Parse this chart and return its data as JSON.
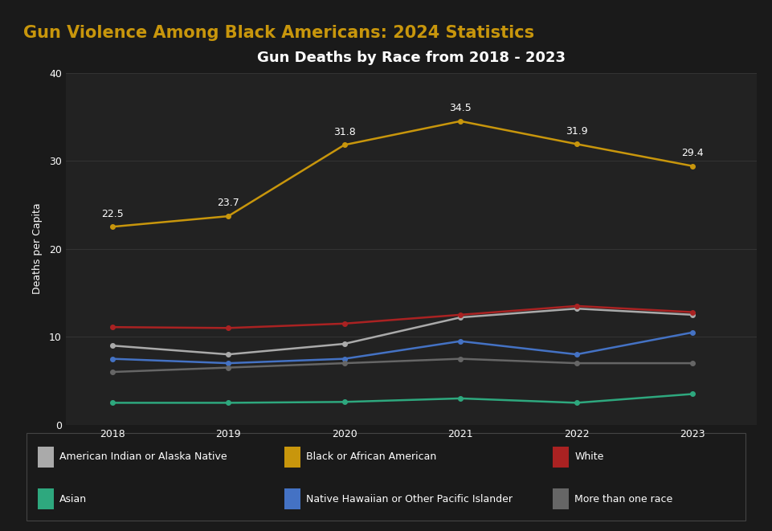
{
  "title": "Gun Deaths by Race from 2018 - 2023",
  "header_title": "Gun Violence Among Black Americans: 2024 Statistics",
  "ylabel": "Deaths per Capita",
  "years": [
    2018,
    2019,
    2020,
    2021,
    2022,
    2023
  ],
  "series": [
    {
      "label": "American Indian or Alaska Native",
      "color": "#aaaaaa",
      "values": [
        9.0,
        8.0,
        9.2,
        12.2,
        13.2,
        12.5
      ],
      "show_labels": false
    },
    {
      "label": "Black or African American",
      "color": "#c8960c",
      "values": [
        22.5,
        23.7,
        31.8,
        34.5,
        31.9,
        29.4
      ],
      "show_labels": true
    },
    {
      "label": "White",
      "color": "#aa2222",
      "values": [
        11.1,
        11.0,
        11.5,
        12.5,
        13.5,
        12.8
      ],
      "show_labels": false
    },
    {
      "label": "Asian",
      "color": "#2ea87e",
      "values": [
        2.5,
        2.5,
        2.6,
        3.0,
        2.5,
        3.5
      ],
      "show_labels": false
    },
    {
      "label": "Native Hawaiian or Other Pacific Islander",
      "color": "#4472c4",
      "values": [
        7.5,
        7.0,
        7.5,
        9.5,
        8.0,
        10.5
      ],
      "show_labels": false
    },
    {
      "label": "More than one race",
      "color": "#666666",
      "values": [
        6.0,
        6.5,
        7.0,
        7.5,
        7.0,
        7.0
      ],
      "show_labels": false
    }
  ],
  "ylim": [
    0,
    40
  ],
  "yticks": [
    0,
    10,
    20,
    30,
    40
  ],
  "bg_color": "#1a1a1a",
  "header_bg_color": "#111111",
  "plot_bg_color": "#222222",
  "legend_bg_color": "#1a1a1a",
  "separator_color": "#b8860b",
  "text_color": "#ffffff",
  "header_text_color": "#c8960c",
  "grid_color": "#333333",
  "title_fontsize": 13,
  "header_fontsize": 15,
  "axis_label_fontsize": 9,
  "tick_fontsize": 9,
  "legend_fontsize": 9,
  "annotation_fontsize": 9
}
